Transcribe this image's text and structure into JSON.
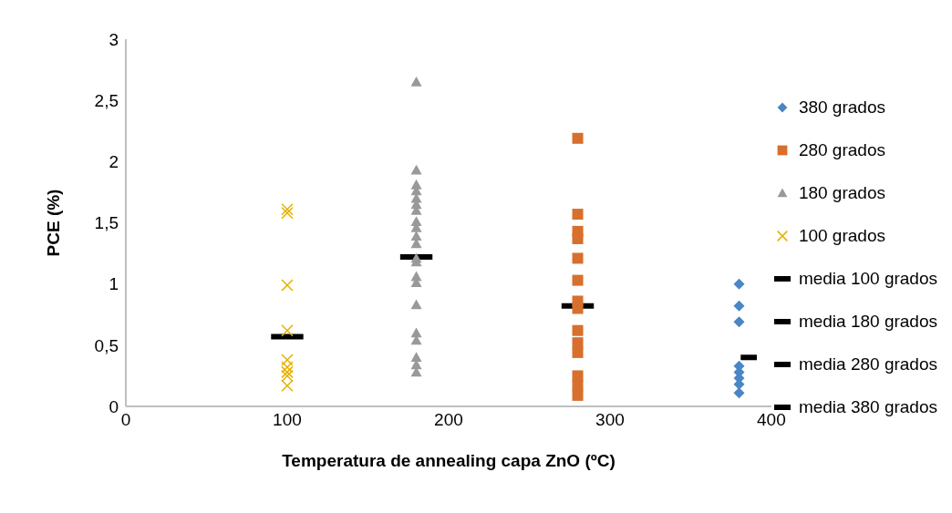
{
  "chart_data": {
    "type": "scatter",
    "xlabel": "Temperatura de annealing capa ZnO (ºC)",
    "ylabel": "PCE (%)",
    "xlim": [
      0,
      400
    ],
    "xticks": [
      0,
      100,
      200,
      300,
      400
    ],
    "ylim": [
      0,
      3
    ],
    "yticks": [
      0,
      {
        "value": 0.5,
        "label": "0,5"
      },
      1,
      {
        "value": 1.5,
        "label": "1,5"
      },
      2,
      {
        "value": 2.5,
        "label": "2,5"
      },
      3
    ],
    "legend": "right",
    "series": [
      {
        "name": "380 grados",
        "color": "#4a86c5",
        "marker": "diamond",
        "x": [
          380,
          380,
          380,
          380,
          380,
          380,
          380,
          380
        ],
        "values": [
          1.0,
          0.82,
          0.69,
          0.33,
          0.28,
          0.23,
          0.18,
          0.11
        ]
      },
      {
        "name": "280 grados",
        "color": "#d86f2c",
        "marker": "square",
        "x": [
          280,
          280,
          280,
          280,
          280,
          280,
          280,
          280,
          280,
          280,
          280,
          280,
          280,
          280
        ],
        "values": [
          2.19,
          1.57,
          1.43,
          1.37,
          1.21,
          1.03,
          0.86,
          0.8,
          0.62,
          0.52,
          0.44,
          0.25,
          0.17,
          0.09
        ]
      },
      {
        "name": "180 grados",
        "color": "#999999",
        "marker": "triangle",
        "x": [
          180,
          180,
          180,
          180,
          180,
          180,
          180,
          180,
          180,
          180,
          180,
          180,
          180,
          180,
          180,
          180,
          180,
          180,
          180,
          180,
          180
        ],
        "values": [
          2.65,
          1.93,
          1.81,
          1.76,
          1.7,
          1.65,
          1.6,
          1.51,
          1.46,
          1.39,
          1.33,
          1.21,
          1.18,
          1.06,
          1.01,
          0.83,
          0.6,
          0.54,
          0.4,
          0.34,
          0.28
        ]
      },
      {
        "name": "100 grados",
        "color": "#e6b000",
        "marker": "cross",
        "x": [
          100,
          100,
          100,
          100,
          100,
          100,
          100,
          100,
          100
        ],
        "values": [
          1.61,
          1.58,
          0.99,
          0.62,
          0.38,
          0.32,
          0.28,
          0.25,
          0.17
        ]
      },
      {
        "name": "media 100 grados",
        "type": "line",
        "color": "#000000",
        "x": [
          90,
          110
        ],
        "values": [
          0.57,
          0.57
        ]
      },
      {
        "name": "media 180 grados",
        "type": "line",
        "color": "#000000",
        "x": [
          170,
          190
        ],
        "values": [
          1.22,
          1.22
        ]
      },
      {
        "name": "media 280 grados",
        "type": "line",
        "color": "#000000",
        "x": [
          270,
          290
        ],
        "values": [
          0.82,
          0.82
        ]
      },
      {
        "name": "media 380 grados",
        "type": "line",
        "color": "#000000",
        "x": [
          381,
          391
        ],
        "values": [
          0.4,
          0.4
        ]
      }
    ]
  }
}
